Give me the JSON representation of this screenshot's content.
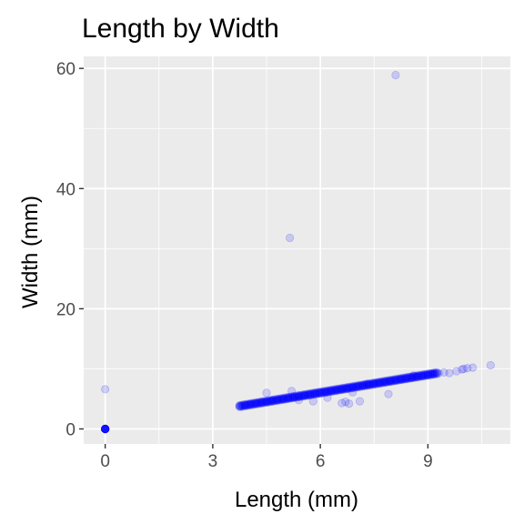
{
  "chart_data": {
    "type": "scatter",
    "title": "Length by Width",
    "xlabel": "Length (mm)",
    "ylabel": "Width (mm)",
    "xlim": [
      -0.6,
      11.3
    ],
    "ylim": [
      -2.5,
      62
    ],
    "x_ticks": [
      0,
      3,
      6,
      9
    ],
    "y_ticks": [
      0,
      20,
      40,
      60
    ],
    "x_tick_labels": [
      "0",
      "3",
      "6",
      "9"
    ],
    "y_tick_labels": [
      "0",
      "20",
      "40",
      "60"
    ],
    "grid": true,
    "legend": "none",
    "colors": {
      "point": "#0000ff",
      "panel_background": "#ebebeb",
      "gridline": "#ffffff",
      "tick_text": "#4d4d4d"
    },
    "point_alpha": 0.15,
    "series": [
      {
        "points": [
          [
            0,
            0
          ],
          [
            0,
            0
          ],
          [
            0,
            0
          ],
          [
            0,
            6.6
          ],
          [
            3.75,
            3.8
          ],
          [
            3.9,
            3.95
          ],
          [
            4.05,
            4.1
          ],
          [
            4.2,
            4.25
          ],
          [
            4.35,
            4.4
          ],
          [
            4.5,
            4.5
          ],
          [
            4.65,
            4.65
          ],
          [
            4.8,
            4.8
          ],
          [
            4.95,
            4.95
          ],
          [
            5.1,
            5.1
          ],
          [
            5.25,
            5.25
          ],
          [
            5.4,
            5.4
          ],
          [
            5.55,
            5.55
          ],
          [
            5.7,
            5.7
          ],
          [
            5.85,
            5.85
          ],
          [
            6.0,
            6.0
          ],
          [
            6.15,
            6.1
          ],
          [
            6.3,
            6.3
          ],
          [
            6.45,
            6.45
          ],
          [
            6.6,
            6.6
          ],
          [
            6.75,
            6.75
          ],
          [
            6.9,
            6.9
          ],
          [
            7.05,
            7.05
          ],
          [
            7.2,
            7.2
          ],
          [
            7.35,
            7.35
          ],
          [
            7.5,
            7.5
          ],
          [
            7.65,
            7.65
          ],
          [
            7.8,
            7.8
          ],
          [
            7.95,
            7.95
          ],
          [
            8.1,
            8.1
          ],
          [
            8.25,
            8.25
          ],
          [
            8.4,
            8.4
          ],
          [
            8.55,
            8.5
          ],
          [
            8.7,
            8.7
          ],
          [
            8.85,
            8.8
          ],
          [
            9.0,
            8.95
          ],
          [
            9.15,
            9.1
          ],
          [
            9.3,
            9.25
          ],
          [
            9.45,
            9.4
          ],
          [
            4.5,
            6.0
          ],
          [
            5.2,
            6.3
          ],
          [
            5.4,
            4.8
          ],
          [
            5.8,
            4.6
          ],
          [
            6.2,
            5.2
          ],
          [
            6.6,
            4.3
          ],
          [
            6.7,
            4.5
          ],
          [
            6.8,
            4.2
          ],
          [
            6.9,
            6.1
          ],
          [
            7.1,
            4.6
          ],
          [
            7.3,
            7.5
          ],
          [
            7.9,
            5.8
          ],
          [
            8.6,
            8.9
          ],
          [
            9.6,
            9.3
          ],
          [
            9.8,
            9.6
          ],
          [
            9.95,
            9.9
          ],
          [
            10.0,
            10.0
          ],
          [
            10.1,
            10.1
          ],
          [
            10.25,
            10.2
          ],
          [
            10.75,
            10.6
          ],
          [
            5.15,
            31.8
          ],
          [
            8.1,
            58.9
          ]
        ]
      }
    ]
  }
}
